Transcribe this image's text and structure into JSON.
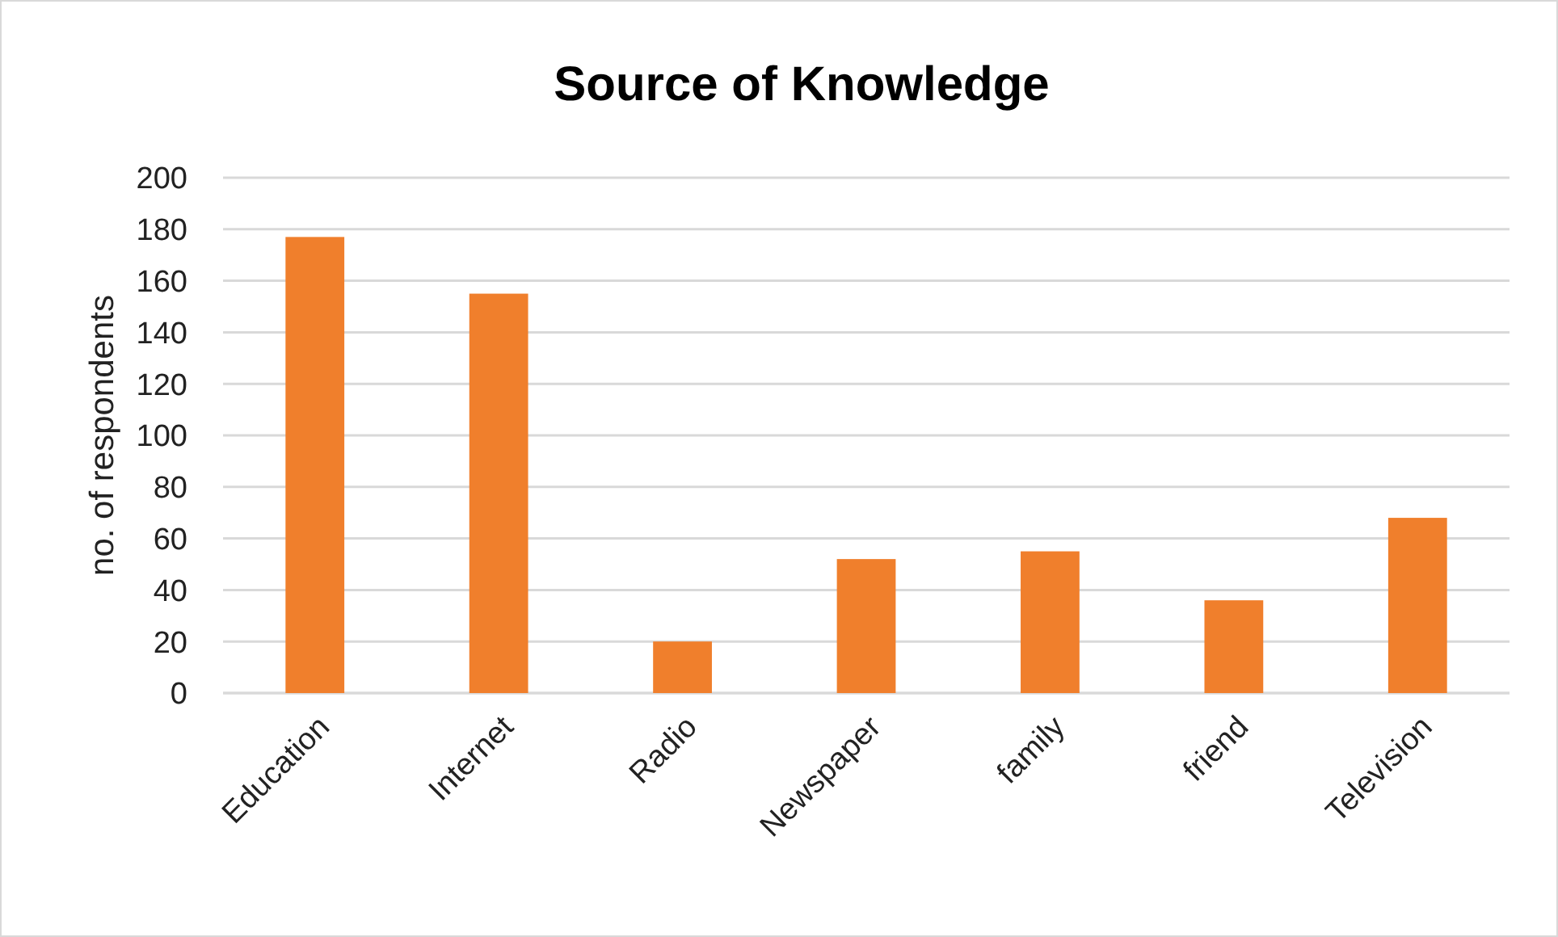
{
  "chart_data": {
    "type": "bar",
    "title": "Source of Knowledge",
    "ylabel": "no. of respondents",
    "categories": [
      "Education",
      "Internet",
      "Radio",
      "Newspaper",
      "family",
      "friend",
      "Television"
    ],
    "values": [
      177,
      155,
      20,
      52,
      55,
      36,
      68
    ],
    "color": "#f07f2c",
    "ylim": [
      0,
      200
    ],
    "yticks": [
      0,
      20,
      40,
      60,
      80,
      100,
      120,
      140,
      160,
      180,
      200
    ],
    "grid": "y"
  }
}
